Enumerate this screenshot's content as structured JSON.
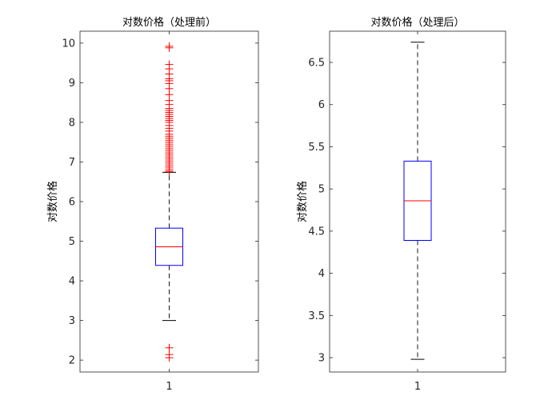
{
  "chart_data": [
    {
      "type": "box",
      "title": "对数价格（处理前）",
      "ylabel": "对数价格",
      "xticks": [
        "1"
      ],
      "yticks": [
        2,
        3,
        4,
        5,
        6,
        7,
        8,
        9,
        10
      ],
      "ylim": [
        1.7,
        10.3
      ],
      "box": {
        "q1": 4.39,
        "median": 4.86,
        "q3": 5.33,
        "whisker_low": 3.0,
        "whisker_high": 6.74
      },
      "outliers": [
        2.06,
        2.14,
        2.31,
        6.76,
        6.8,
        6.85,
        6.9,
        6.95,
        7.0,
        7.05,
        7.1,
        7.15,
        7.2,
        7.25,
        7.3,
        7.35,
        7.4,
        7.45,
        7.5,
        7.55,
        7.6,
        7.65,
        7.7,
        7.78,
        7.85,
        7.92,
        8.0,
        8.05,
        8.1,
        8.15,
        8.2,
        8.25,
        8.3,
        8.35,
        8.45,
        8.55,
        8.7,
        8.85,
        8.98,
        9.05,
        9.1,
        9.22,
        9.35,
        9.46,
        9.88,
        9.92
      ]
    },
    {
      "type": "box",
      "title": "对数价格（处理后）",
      "ylabel": "对数价格",
      "xticks": [
        "1"
      ],
      "yticks": [
        3,
        3.5,
        4,
        4.5,
        5,
        5.5,
        6,
        6.5
      ],
      "ylim": [
        2.83,
        6.87
      ],
      "box": {
        "q1": 4.39,
        "median": 4.86,
        "q3": 5.33,
        "whisker_low": 2.98,
        "whisker_high": 6.74
      },
      "outliers": []
    }
  ],
  "colors": {
    "box": "#0000ff",
    "median": "#ff0000",
    "whisker": "#000000",
    "outlier": "#ff0000",
    "axis": "#262626"
  }
}
